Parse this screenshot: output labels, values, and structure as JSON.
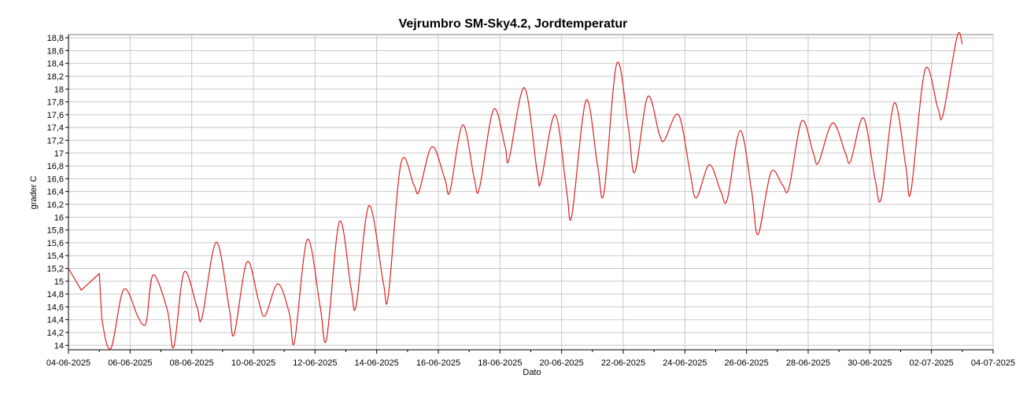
{
  "chart_data": {
    "type": "line",
    "title": "Vejrumbro SM-Sky4.2, Jordtemperatur",
    "xlabel": "Dato",
    "ylabel": "grader C",
    "ylim": [
      13.93,
      18.85
    ],
    "xlim": [
      "04-06-2025",
      "04-07-2025"
    ],
    "grid": true,
    "legend": "none",
    "y_ticks": [
      "14",
      "14,2",
      "14,4",
      "14,6",
      "14,8",
      "15",
      "15,2",
      "15,4",
      "15,6",
      "15,8",
      "16",
      "16,2",
      "16,4",
      "16,6",
      "16,8",
      "17",
      "17,2",
      "17,4",
      "17,6",
      "17,8",
      "18",
      "18,2",
      "18,4",
      "18,6",
      "18,8"
    ],
    "x_ticks": [
      "04-06-2025",
      "06-06-2025",
      "08-06-2025",
      "10-06-2025",
      "12-06-2025",
      "14-06-2025",
      "16-06-2025",
      "18-06-2025",
      "20-06-2025",
      "22-06-2025",
      "24-06-2025",
      "26-06-2025",
      "28-06-2025",
      "30-06-2025",
      "02-07-2025",
      "04-07-2025"
    ],
    "series": [
      {
        "color": "#dd2222",
        "points": [
          [
            "04-06-2025 00:00",
            15.2
          ],
          [
            "04-06-2025 10:00",
            14.86
          ],
          [
            "05-06-2025 00:00",
            15.12
          ],
          [
            "05-06-2025 02:00",
            14.42
          ],
          [
            "05-06-2025 09:00",
            13.95
          ],
          [
            "05-06-2025 19:00",
            14.87
          ],
          [
            "06-06-2025 06:00",
            14.45
          ],
          [
            "06-06-2025 10:00",
            14.32
          ],
          [
            "06-06-2025 13:00",
            14.4
          ],
          [
            "06-06-2025 18:00",
            15.1
          ],
          [
            "07-06-2025 05:00",
            14.55
          ],
          [
            "07-06-2025 10:00",
            13.97
          ],
          [
            "07-06-2025 18:00",
            15.14
          ],
          [
            "08-06-2025 04:00",
            14.6
          ],
          [
            "08-06-2025 08:00",
            14.43
          ],
          [
            "08-06-2025 19:00",
            15.61
          ],
          [
            "09-06-2025 05:00",
            14.6
          ],
          [
            "09-06-2025 09:00",
            14.17
          ],
          [
            "09-06-2025 19:00",
            15.3
          ],
          [
            "10-06-2025 04:00",
            14.7
          ],
          [
            "10-06-2025 09:00",
            14.46
          ],
          [
            "10-06-2025 19:00",
            14.96
          ],
          [
            "11-06-2025 04:00",
            14.5
          ],
          [
            "11-06-2025 08:00",
            14.05
          ],
          [
            "11-06-2025 18:00",
            15.65
          ],
          [
            "12-06-2025 04:00",
            14.6
          ],
          [
            "12-06-2025 09:00",
            14.1
          ],
          [
            "12-06-2025 19:00",
            15.93
          ],
          [
            "13-06-2025 04:00",
            14.9
          ],
          [
            "13-06-2025 08:00",
            14.62
          ],
          [
            "13-06-2025 18:00",
            16.18
          ],
          [
            "14-06-2025 05:00",
            15
          ],
          [
            "14-06-2025 09:00",
            14.77
          ],
          [
            "14-06-2025 19:00",
            16.85
          ],
          [
            "15-06-2025 05:00",
            16.5
          ],
          [
            "15-06-2025 09:00",
            16.4
          ],
          [
            "15-06-2025 19:00",
            17.1
          ],
          [
            "16-06-2025 05:00",
            16.6
          ],
          [
            "16-06-2025 09:00",
            16.4
          ],
          [
            "16-06-2025 19:00",
            17.44
          ],
          [
            "17-06-2025 04:00",
            16.6
          ],
          [
            "17-06-2025 08:00",
            16.45
          ],
          [
            "17-06-2025 19:00",
            17.68
          ],
          [
            "18-06-2025 04:00",
            17.1
          ],
          [
            "18-06-2025 07:00",
            16.9
          ],
          [
            "18-06-2025 19:00",
            18.02
          ],
          [
            "19-06-2025 05:00",
            16.7
          ],
          [
            "19-06-2025 08:00",
            16.57
          ],
          [
            "19-06-2025 19:00",
            17.6
          ],
          [
            "20-06-2025 04:00",
            16.4
          ],
          [
            "20-06-2025 08:00",
            16.03
          ],
          [
            "20-06-2025 19:00",
            17.82
          ],
          [
            "21-06-2025 04:00",
            16.8
          ],
          [
            "21-06-2025 09:00",
            16.38
          ],
          [
            "21-06-2025 19:00",
            18.4
          ],
          [
            "22-06-2025 04:00",
            17.4
          ],
          [
            "22-06-2025 09:00",
            16.7
          ],
          [
            "22-06-2025 19:00",
            17.88
          ],
          [
            "23-06-2025 04:00",
            17.3
          ],
          [
            "23-06-2025 08:00",
            17.2
          ],
          [
            "23-06-2025 19:00",
            17.6
          ],
          [
            "24-06-2025 04:00",
            16.7
          ],
          [
            "24-06-2025 09:00",
            16.3
          ],
          [
            "24-06-2025 19:00",
            16.82
          ],
          [
            "25-06-2025 04:00",
            16.4
          ],
          [
            "25-06-2025 09:00",
            16.28
          ],
          [
            "25-06-2025 19:00",
            17.35
          ],
          [
            "26-06-2025 04:00",
            16.4
          ],
          [
            "26-06-2025 09:00",
            15.73
          ],
          [
            "26-06-2025 19:00",
            16.7
          ],
          [
            "27-06-2025 04:00",
            16.5
          ],
          [
            "27-06-2025 09:00",
            16.45
          ],
          [
            "27-06-2025 19:00",
            17.5
          ],
          [
            "28-06-2025 04:00",
            17
          ],
          [
            "28-06-2025 08:00",
            16.85
          ],
          [
            "28-06-2025 19:00",
            17.47
          ],
          [
            "29-06-2025 05:00",
            17
          ],
          [
            "29-06-2025 09:00",
            16.87
          ],
          [
            "29-06-2025 19:00",
            17.55
          ],
          [
            "30-06-2025 04:00",
            16.6
          ],
          [
            "30-06-2025 09:00",
            16.3
          ],
          [
            "30-06-2025 19:00",
            17.78
          ],
          [
            "01-07-2025 04:00",
            16.8
          ],
          [
            "01-07-2025 08:00",
            16.4
          ],
          [
            "01-07-2025 19:00",
            18.3
          ],
          [
            "02-07-2025 05:00",
            17.7
          ],
          [
            "02-07-2025 09:00",
            17.6
          ],
          [
            "02-07-2025 20:00",
            18.82
          ],
          [
            "03-07-2025 00:00",
            18.7
          ]
        ]
      }
    ]
  }
}
